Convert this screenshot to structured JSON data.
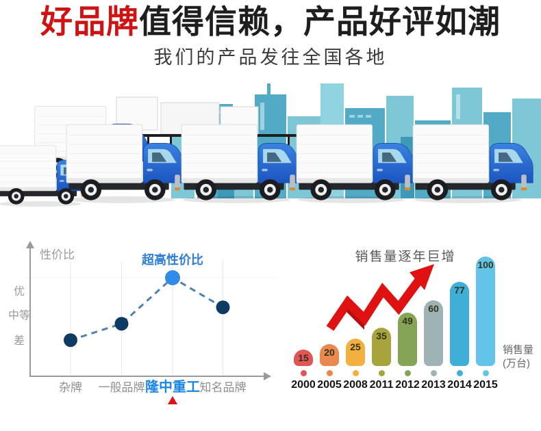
{
  "header": {
    "title_highlight": "好品牌",
    "title_rest": "值得信赖，产品好评如潮",
    "subtitle": "我们的产品发往全国各地"
  },
  "scene": {
    "description": "fleet-of-delivery-trucks-with-city-skyline",
    "skyline_light": "#7ec7d7",
    "skyline_medium": "#52abc6",
    "skyline_dark": "#3c9ab8",
    "cab_blue_top": "#3b82e0",
    "cab_blue_bottom": "#1c55c0"
  },
  "chart_data": [
    {
      "type": "line",
      "ylabel": "性价比",
      "y_tick_labels": [
        "优",
        "中等",
        "差"
      ],
      "categories": [
        "杂牌",
        "一般品牌",
        "隆中重工",
        "知名品牌"
      ],
      "values": [
        1.1,
        1.6,
        3.0,
        2.1
      ],
      "annotation": "超高性价比",
      "highlight_index": 2,
      "line_style": "dashed",
      "line_color": "#4e81ab",
      "point_color": "#0f3a62",
      "highlight_point_color": "#2f8ce8",
      "annotation_color": "#2e7fd4",
      "highlight_label_color": "#1a86e8",
      "marker": "red-triangle",
      "marker_color": "#e01111",
      "grid": "vertical-light"
    },
    {
      "type": "bar",
      "title": "销售量逐年巨增",
      "categories": [
        "2000",
        "2005",
        "2008",
        "2011",
        "2012",
        "2013",
        "2014",
        "2015"
      ],
      "values": [
        15,
        20,
        25,
        35,
        49,
        60,
        77,
        100
      ],
      "bar_colors": [
        "#e25555",
        "#e9894e",
        "#f2b13e",
        "#a8a43c",
        "#85a456",
        "#9fb3b6",
        "#3fafd7",
        "#62c4e8"
      ],
      "unit_label_line1": "销售量",
      "unit_label_line2": "(万台)",
      "ylim": [
        0,
        100
      ],
      "annotation": "red-zigzag-up-arrow",
      "arrow_color": "#df1111",
      "legend": "none"
    }
  ]
}
